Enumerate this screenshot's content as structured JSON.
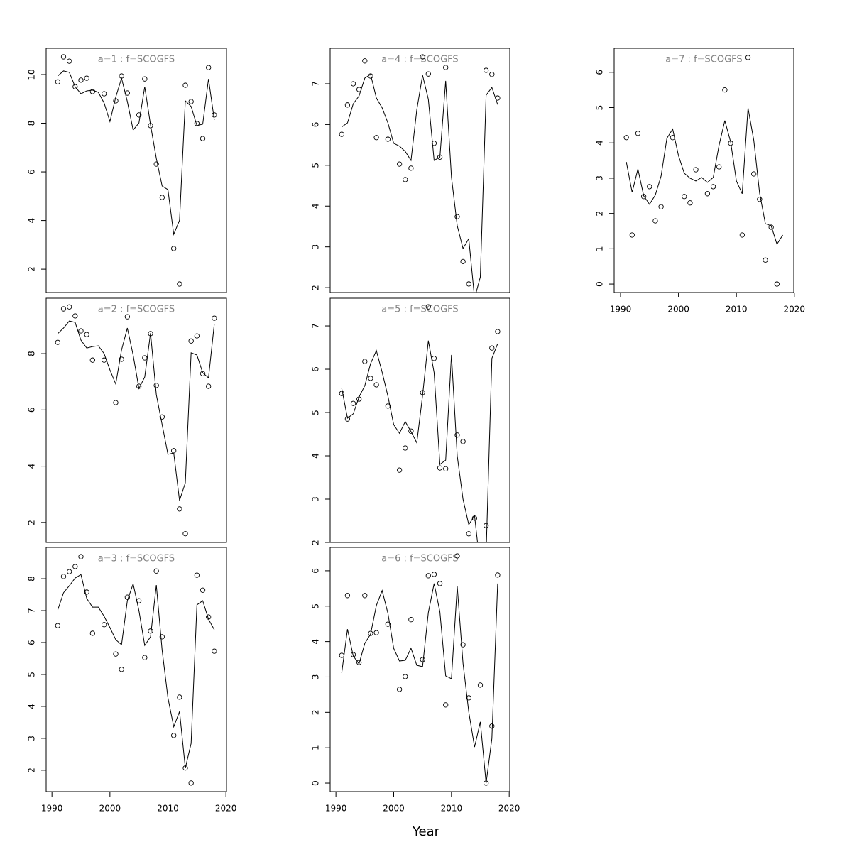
{
  "xlabel": "Year",
  "chart_data": [
    {
      "type": "scatter-line",
      "title": "a=1 : f=SCOGFS",
      "title_color": "#808080",
      "x": [
        1991,
        1992,
        1993,
        1994,
        1995,
        1996,
        1997,
        1998,
        1999,
        2000,
        2001,
        2002,
        2003,
        2004,
        2005,
        2006,
        2007,
        2008,
        2009,
        2010,
        2011,
        2012,
        2013,
        2014,
        2015,
        2016,
        2017,
        2018
      ],
      "series": [
        {
          "type": "scatter",
          "color": "#000000",
          "values": [
            9.7,
            10.73,
            10.55,
            9.5,
            9.77,
            9.85,
            9.3,
            null,
            9.21,
            null,
            8.92,
            9.94,
            9.24,
            null,
            8.34,
            9.82,
            7.9,
            6.32,
            4.95,
            null,
            2.85,
            1.39,
            9.56,
            8.89,
            7.99,
            7.37,
            10.29,
            8.34
          ]
        },
        {
          "type": "line",
          "color": "#000000",
          "values": [
            9.94,
            10.15,
            10.09,
            9.5,
            9.21,
            9.33,
            9.36,
            9.27,
            8.83,
            8.07,
            9.07,
            9.85,
            8.89,
            7.72,
            8.01,
            9.5,
            7.93,
            6.55,
            5.42,
            5.27,
            3.43,
            4.01,
            8.92,
            8.69,
            7.9,
            7.96,
            9.82,
            8.13
          ]
        }
      ],
      "xlim": [
        1989,
        2020.1
      ],
      "ylim": [
        1.04,
        11.08
      ],
      "yticks": [
        2,
        4,
        6,
        8,
        10
      ]
    },
    {
      "type": "scatter-line",
      "title": "a=2 : f=SCOGFS",
      "title_color": "#808080",
      "x": [
        1991,
        1992,
        1993,
        1994,
        1995,
        1996,
        1997,
        1998,
        1999,
        2000,
        2001,
        2002,
        2003,
        2004,
        2005,
        2006,
        2007,
        2008,
        2009,
        2010,
        2011,
        2012,
        2013,
        2014,
        2015,
        2016,
        2017,
        2018
      ],
      "series": [
        {
          "type": "scatter",
          "color": "#000000",
          "values": [
            8.4,
            9.59,
            9.66,
            9.34,
            8.81,
            8.68,
            7.77,
            null,
            7.77,
            null,
            6.26,
            7.8,
            9.31,
            null,
            6.84,
            7.85,
            8.71,
            6.87,
            5.75,
            null,
            4.55,
            2.48,
            1.6,
            8.45,
            8.63,
            7.29,
            6.84,
            9.26
          ]
        },
        {
          "type": "line",
          "color": "#000000",
          "values": [
            8.71,
            8.91,
            9.16,
            9.11,
            8.48,
            8.2,
            8.25,
            8.28,
            8.0,
            7.42,
            6.92,
            8.13,
            8.91,
            7.95,
            6.76,
            7.17,
            8.73,
            6.54,
            5.48,
            4.42,
            4.47,
            2.78,
            3.41,
            8.03,
            7.95,
            7.32,
            7.14,
            9.06
          ]
        }
      ],
      "xlim": [
        1989,
        2020.1
      ],
      "ylim": [
        1.29,
        9.97
      ],
      "yticks": [
        2,
        4,
        6,
        8
      ]
    },
    {
      "type": "scatter-line",
      "title": "a=3 : f=SCOGFS",
      "title_color": "#808080",
      "x": [
        1991,
        1992,
        1993,
        1994,
        1995,
        1996,
        1997,
        1998,
        1999,
        2000,
        2001,
        2002,
        2003,
        2004,
        2005,
        2006,
        2007,
        2008,
        2009,
        2010,
        2011,
        2012,
        2013,
        2014,
        2015,
        2016,
        2017,
        2018
      ],
      "series": [
        {
          "type": "scatter",
          "color": "#000000",
          "values": [
            6.53,
            8.07,
            8.22,
            8.38,
            8.69,
            7.58,
            6.29,
            null,
            6.56,
            null,
            5.64,
            5.16,
            7.42,
            null,
            7.31,
            5.53,
            6.36,
            8.24,
            6.18,
            null,
            3.09,
            4.29,
            2.07,
            1.6,
            8.11,
            7.64,
            6.8,
            5.73
          ]
        },
        {
          "type": "line",
          "color": "#000000",
          "values": [
            7.02,
            7.56,
            7.78,
            8.02,
            8.13,
            7.38,
            7.11,
            7.11,
            6.82,
            6.47,
            6.09,
            5.93,
            7.31,
            7.84,
            7.0,
            5.91,
            6.18,
            7.8,
            5.76,
            4.27,
            3.36,
            3.84,
            2.07,
            2.84,
            7.18,
            7.31,
            6.73,
            6.4
          ]
        }
      ],
      "xlim": [
        1989,
        2020.1
      ],
      "ylim": [
        1.33,
        8.98
      ],
      "yticks": [
        2,
        3,
        4,
        5,
        6,
        7,
        8
      ],
      "xticks": [
        1990,
        2000,
        2010,
        2020
      ]
    },
    {
      "type": "scatter-line",
      "title": "a=4 : f=SCOGFS",
      "title_color": "#808080",
      "x": [
        1991,
        1992,
        1993,
        1994,
        1995,
        1996,
        1997,
        1998,
        1999,
        2000,
        2001,
        2002,
        2003,
        2004,
        2005,
        2006,
        2007,
        2008,
        2009,
        2010,
        2011,
        2012,
        2013,
        2014,
        2015,
        2016,
        2017,
        2018
      ],
      "series": [
        {
          "type": "scatter",
          "color": "#000000",
          "values": [
            5.76,
            6.48,
            7.0,
            6.86,
            7.56,
            7.19,
            5.68,
            null,
            5.64,
            null,
            5.03,
            4.65,
            4.93,
            null,
            7.66,
            7.24,
            5.54,
            5.2,
            7.4,
            null,
            3.74,
            2.64,
            2.09,
            null,
            null,
            7.33,
            7.23,
            6.65
          ]
        },
        {
          "type": "line",
          "color": "#000000",
          "values": [
            5.94,
            6.04,
            6.51,
            6.7,
            7.14,
            7.23,
            6.65,
            6.41,
            6.04,
            5.54,
            5.47,
            5.34,
            5.12,
            6.36,
            7.21,
            6.62,
            5.12,
            5.2,
            7.07,
            4.71,
            3.52,
            2.96,
            3.2,
            1.74,
            2.26,
            6.72,
            6.91,
            6.49
          ]
        }
      ],
      "xlim": [
        1989,
        2020.1
      ],
      "ylim": [
        1.88,
        7.87
      ],
      "yticks": [
        2,
        3,
        4,
        5,
        6,
        7
      ]
    },
    {
      "type": "scatter-line",
      "title": "a=5 : f=SCOGFS",
      "title_color": "#808080",
      "x": [
        1991,
        1992,
        1993,
        1994,
        1995,
        1996,
        1997,
        1998,
        1999,
        2000,
        2001,
        2002,
        2003,
        2004,
        2005,
        2006,
        2007,
        2008,
        2009,
        2010,
        2011,
        2012,
        2013,
        2014,
        2015,
        2016,
        2017,
        2018
      ],
      "series": [
        {
          "type": "scatter",
          "color": "#000000",
          "values": [
            5.44,
            4.85,
            5.21,
            5.31,
            6.18,
            5.79,
            5.64,
            null,
            5.15,
            null,
            3.67,
            4.18,
            4.57,
            null,
            5.46,
            7.44,
            6.25,
            3.72,
            3.7,
            null,
            4.48,
            4.33,
            2.2,
            2.56,
            null,
            2.39,
            6.49,
            6.87
          ]
        },
        {
          "type": "line",
          "color": "#000000",
          "values": [
            5.56,
            4.87,
            4.97,
            5.36,
            5.62,
            6.13,
            6.43,
            5.93,
            5.38,
            4.72,
            4.52,
            4.79,
            4.56,
            4.3,
            5.39,
            6.66,
            5.92,
            3.8,
            3.9,
            6.33,
            4.0,
            3.0,
            2.41,
            2.62,
            1.41,
            1.74,
            6.25,
            6.59
          ]
        }
      ],
      "xlim": [
        1989,
        2020.1
      ],
      "ylim": [
        2.0,
        7.64
      ],
      "yticks": [
        2,
        3,
        4,
        5,
        6,
        7
      ]
    },
    {
      "type": "scatter-line",
      "title": "a=6 : f=SCOGFS",
      "title_color": "#808080",
      "x": [
        1991,
        1992,
        1993,
        1994,
        1995,
        1996,
        1997,
        1998,
        1999,
        2000,
        2001,
        2002,
        2003,
        2004,
        2005,
        2006,
        2007,
        2008,
        2009,
        2010,
        2011,
        2012,
        2013,
        2014,
        2015,
        2016,
        2017,
        2018
      ],
      "series": [
        {
          "type": "scatter",
          "color": "#000000",
          "values": [
            3.61,
            5.3,
            3.63,
            3.41,
            5.3,
            4.23,
            4.25,
            null,
            4.49,
            null,
            2.65,
            3.01,
            4.62,
            null,
            3.49,
            5.86,
            5.9,
            5.64,
            2.21,
            null,
            6.42,
            3.91,
            2.41,
            null,
            2.77,
            0,
            1.61,
            5.88
          ]
        },
        {
          "type": "line",
          "color": "#000000",
          "values": [
            3.11,
            4.35,
            3.59,
            3.37,
            3.95,
            4.21,
            5.02,
            5.44,
            4.8,
            3.81,
            3.45,
            3.47,
            3.81,
            3.33,
            3.29,
            4.82,
            5.64,
            4.84,
            3.03,
            2.95,
            5.56,
            3.39,
            2.01,
            1.02,
            1.73,
            0,
            1.26,
            5.64
          ]
        }
      ],
      "xlim": [
        1989,
        2020.1
      ],
      "ylim": [
        -0.24,
        6.66
      ],
      "yticks": [
        0,
        1,
        2,
        3,
        4,
        5,
        6
      ],
      "xticks": [
        1990,
        2000,
        2010,
        2020
      ]
    },
    {
      "type": "scatter-line",
      "title": "a=7 : f=SCOGFS",
      "title_color": "#808080",
      "x": [
        1991,
        1992,
        1993,
        1994,
        1995,
        1996,
        1997,
        1998,
        1999,
        2000,
        2001,
        2002,
        2003,
        2004,
        2005,
        2006,
        2007,
        2008,
        2009,
        2010,
        2011,
        2012,
        2013,
        2014,
        2015,
        2016,
        2017,
        2018
      ],
      "series": [
        {
          "type": "scatter",
          "color": "#000000",
          "values": [
            4.15,
            1.39,
            4.27,
            2.48,
            2.76,
            1.79,
            2.19,
            null,
            4.15,
            null,
            2.48,
            2.3,
            3.24,
            null,
            2.56,
            2.76,
            3.32,
            5.5,
            3.99,
            null,
            1.39,
            6.42,
            3.12,
            2.4,
            0.68,
            1.61,
            0,
            null
          ]
        },
        {
          "type": "line",
          "color": "#000000",
          "values": [
            3.46,
            2.6,
            3.26,
            2.5,
            2.26,
            2.52,
            3.06,
            4.13,
            4.39,
            3.64,
            3.14,
            3.0,
            2.92,
            3.02,
            2.88,
            3.02,
            3.93,
            4.63,
            4.03,
            2.92,
            2.56,
            4.99,
            4.07,
            2.58,
            1.71,
            1.65,
            1.13,
            1.39
          ]
        }
      ],
      "xlim": [
        1988.9,
        2019.9
      ],
      "ylim": [
        -0.24,
        6.68
      ],
      "yticks": [
        0,
        1,
        2,
        3,
        4,
        5,
        6
      ],
      "xticks": [
        1990,
        2000,
        2010,
        2020
      ]
    }
  ]
}
